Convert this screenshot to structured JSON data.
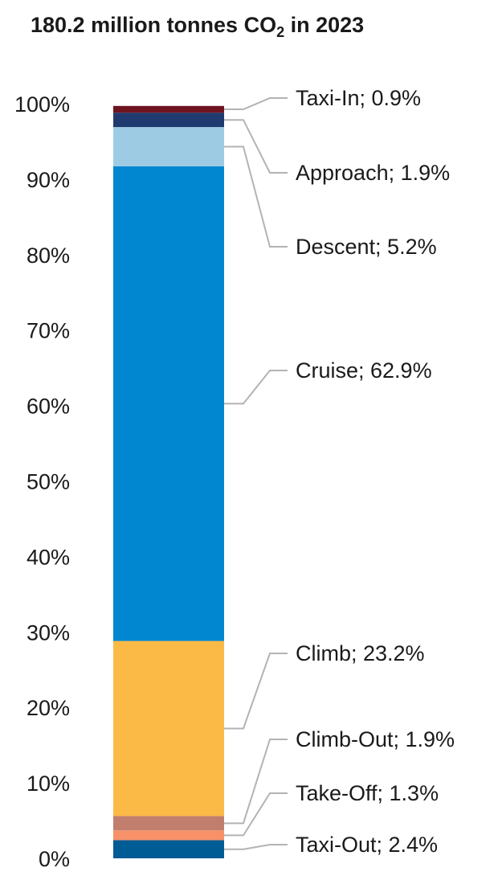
{
  "chart_data": {
    "type": "bar",
    "stacked": true,
    "title": {
      "prefix": "180.2 million tonnes CO",
      "subscript": "2",
      "suffix": " in 2023"
    },
    "ylim": [
      0,
      100
    ],
    "y_ticks": [
      "0%",
      "10%",
      "20%",
      "30%",
      "40%",
      "50%",
      "60%",
      "70%",
      "80%",
      "90%",
      "100%"
    ],
    "grid": false,
    "legend": "right-side leader labels",
    "segments": [
      {
        "name": "Taxi-Out",
        "value": 2.4,
        "label": "Taxi-Out; 2.4%",
        "color": "#005c94"
      },
      {
        "name": "Take-Off",
        "value": 1.3,
        "label": "Take-Off; 1.3%",
        "color": "#f7916a"
      },
      {
        "name": "Climb-Out",
        "value": 1.9,
        "label": "Climb-Out; 1.9%",
        "color": "#c17e6c"
      },
      {
        "name": "Climb",
        "value": 23.2,
        "label": "Climb; 23.2%",
        "color": "#fbb946"
      },
      {
        "name": "Cruise",
        "value": 62.9,
        "label": "Cruise; 62.9%",
        "color": "#0087d0"
      },
      {
        "name": "Descent",
        "value": 5.2,
        "label": "Descent; 5.2%",
        "color": "#9ecbe4"
      },
      {
        "name": "Approach",
        "value": 1.9,
        "label": "Approach; 1.9%",
        "color": "#1f3a6e"
      },
      {
        "name": "Taxi-In",
        "value": 0.9,
        "label": "Taxi-In; 0.9%",
        "color": "#6e1420"
      }
    ]
  }
}
